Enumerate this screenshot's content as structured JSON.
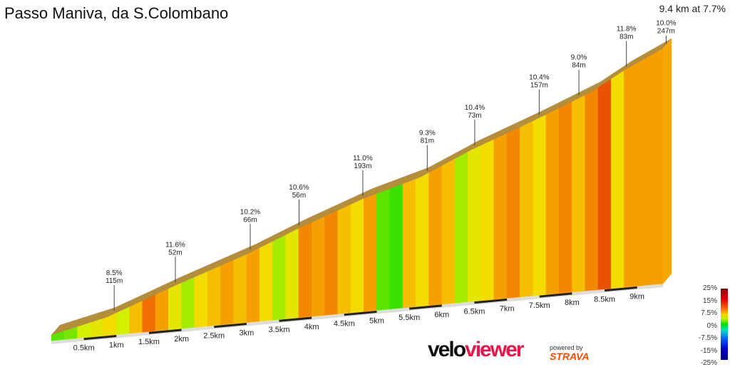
{
  "title": "Passo Maniva, da S.Colombano",
  "summary": "9.4 km at 7.7%",
  "brand": {
    "logo": "veloviewer",
    "powered": "powered by",
    "strava": "STRAVA"
  },
  "legend": {
    "ticks": [
      "25%",
      "15%",
      "7.5%",
      "0%",
      "-7.5%",
      "-15%",
      "-25%"
    ]
  },
  "chart_data": {
    "type": "area",
    "title": "Passo Maniva, da S.Colombano",
    "x_unit": "km",
    "x_ticks": [
      "0.5km",
      "1km",
      "1.5km",
      "2km",
      "2.5km",
      "3km",
      "3.5km",
      "4km",
      "4.5km",
      "5km",
      "5.5km",
      "6km",
      "6.5km",
      "7km",
      "7.5km",
      "8km",
      "8.5km",
      "9km"
    ],
    "xlim": [
      0,
      9.4
    ],
    "profile": {
      "distance_km": [
        0,
        0.85,
        1.84,
        2.99,
        3.76,
        4.8,
        5.67,
        6.44,
        7.43,
        8.3,
        8.8,
        9.4
      ],
      "elevation_gain_m": [
        18,
        57,
        132,
        213,
        277,
        355,
        405,
        475,
        551,
        623,
        681,
        739
      ]
    },
    "segment_km": 0.2,
    "segment_gradients_pct": [
      3,
      4,
      6,
      7,
      8,
      6,
      9,
      12,
      10,
      7,
      5,
      8,
      9,
      10,
      9,
      10,
      8,
      5,
      7,
      11,
      10,
      11,
      9,
      8,
      10,
      3,
      2,
      9,
      8,
      10,
      9,
      5,
      7,
      8,
      10,
      11,
      9,
      8,
      10,
      11,
      9,
      11,
      13,
      8,
      10,
      10,
      10
    ],
    "annotations": [
      {
        "km": 0.9,
        "grade": "8.5%",
        "length": "115m"
      },
      {
        "km": 1.84,
        "grade": "11.6%",
        "length": "52m"
      },
      {
        "km": 2.99,
        "grade": "10.2%",
        "length": "66m"
      },
      {
        "km": 3.74,
        "grade": "10.6%",
        "length": "56m"
      },
      {
        "km": 4.72,
        "grade": "11.0%",
        "length": "193m"
      },
      {
        "km": 5.71,
        "grade": "9.3%",
        "length": "81m"
      },
      {
        "km": 6.44,
        "grade": "10.4%",
        "length": "73m"
      },
      {
        "km": 7.43,
        "grade": "10.4%",
        "length": "157m"
      },
      {
        "km": 8.04,
        "grade": "9.0%",
        "length": "84m"
      },
      {
        "km": 8.77,
        "grade": "11.8%",
        "length": "83m"
      },
      {
        "km": 9.38,
        "grade": "10.0%",
        "length": "247m"
      }
    ]
  }
}
